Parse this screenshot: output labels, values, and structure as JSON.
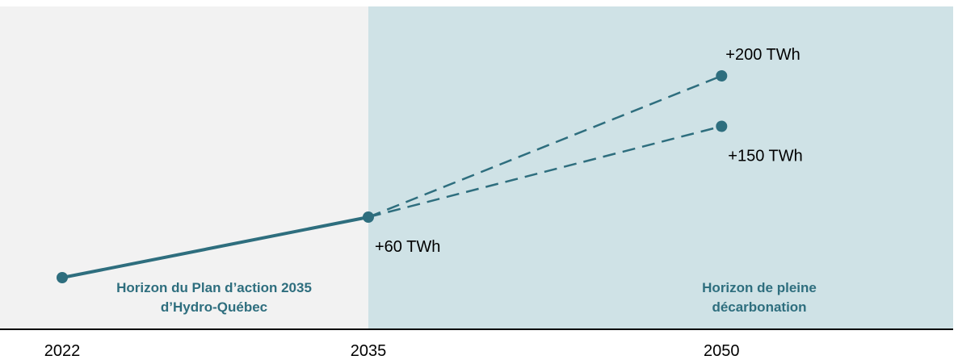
{
  "chart_data": {
    "type": "line",
    "x": [
      2022,
      2035,
      2050
    ],
    "xlim": [
      2022,
      2056.6
    ],
    "ylim": [
      0,
      246
    ],
    "x_ticks": [
      {
        "value": 2022,
        "label": "2022"
      },
      {
        "value": 2035,
        "label": "2035"
      },
      {
        "value": 2050,
        "label": "2050"
      }
    ],
    "series": [
      {
        "style": "solid",
        "points": [
          {
            "x": 2022,
            "y": 0
          },
          {
            "x": 2035,
            "y": 60
          }
        ]
      },
      {
        "style": "dashed",
        "points": [
          {
            "x": 2035,
            "y": 60
          },
          {
            "x": 2050,
            "y": 200
          }
        ]
      },
      {
        "style": "dashed",
        "points": [
          {
            "x": 2035,
            "y": 60
          },
          {
            "x": 2050,
            "y": 150
          }
        ]
      }
    ],
    "annotations": [
      {
        "x": 2035,
        "y": 60,
        "text": "+60 TWh",
        "position": "below-right"
      },
      {
        "x": 2050,
        "y": 200,
        "text": "+200 TWh",
        "position": "above"
      },
      {
        "x": 2050,
        "y": 150,
        "text": "+150 TWh",
        "position": "below-right"
      }
    ],
    "regions": [
      {
        "from": 2022,
        "to": 2035,
        "color": "#f2f2f2",
        "lines": [
          "Horizon du Plan d’action 2035",
          "d’Hydro-Québec"
        ]
      },
      {
        "from": 2035,
        "to": 2056.6,
        "color": "#cfe2e6",
        "lines": [
          "Horizon de pleine",
          "décarbonation"
        ]
      }
    ],
    "colors": {
      "line": "#2e6e7e",
      "label": "#2e6e7e",
      "axis": "#000000"
    },
    "grid": false
  }
}
